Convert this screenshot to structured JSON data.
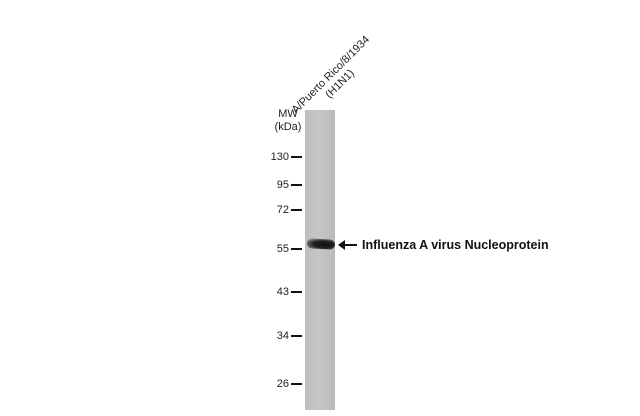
{
  "lane_labels": [
    {
      "line1": "A/Puerto Rico/8/1934",
      "line2": "(H1N1)"
    }
  ],
  "mw_title": {
    "line1": "MW",
    "line2": "(kDa)"
  },
  "markers": [
    "130",
    "95",
    "72",
    "55",
    "43",
    "34",
    "26"
  ],
  "band_annotation": "Influenza A virus Nucleoprotein",
  "icons": {
    "band_pointer": "arrow-left-icon"
  }
}
